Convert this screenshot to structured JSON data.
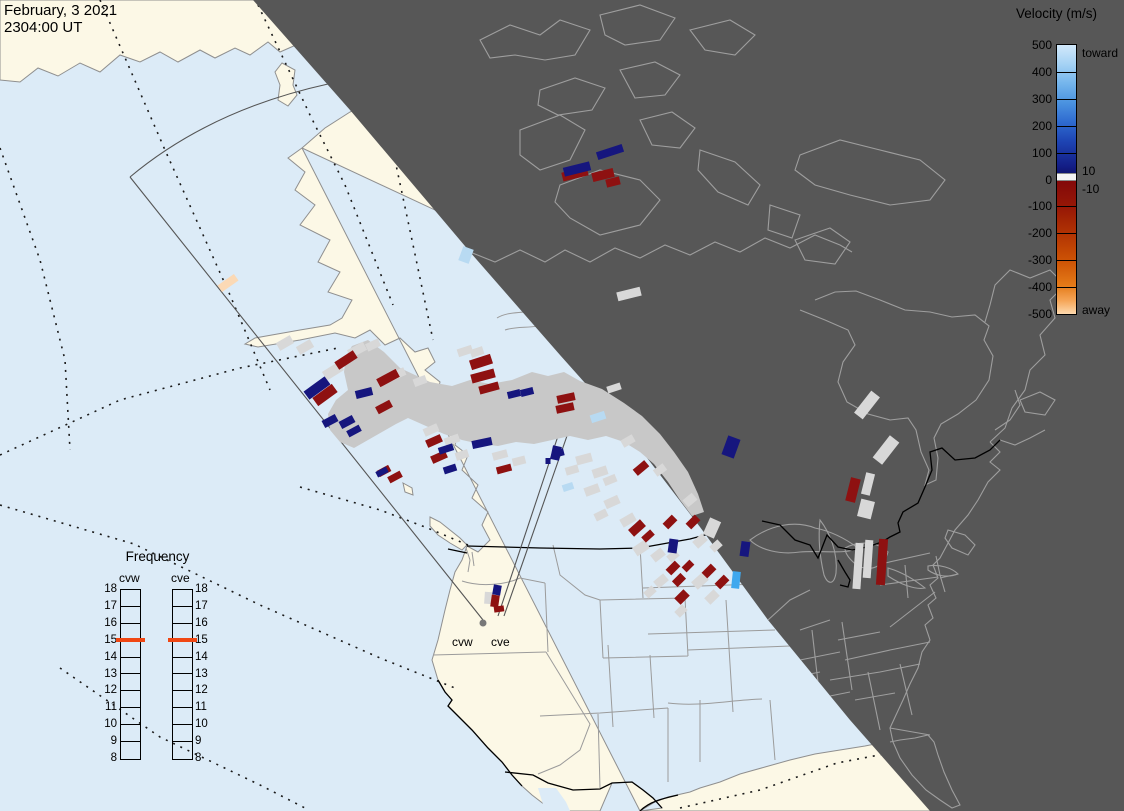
{
  "header": {
    "date_line1": "February, 3 2021",
    "date_line2": "2304:00 UT"
  },
  "velocity_legend": {
    "title": "Velocity (m/s)",
    "ticks": [
      "500",
      "400",
      "300",
      "200",
      "100",
      "0",
      "-100",
      "-200",
      "-300",
      "-400",
      "-500"
    ],
    "toward_label": "toward",
    "away_label": "away",
    "pos_threshold": "10",
    "neg_threshold": "-10"
  },
  "frequency_legend": {
    "title": "Frequency",
    "radars": [
      "cvw",
      "cve"
    ],
    "ticks": [
      "18",
      "17",
      "16",
      "15",
      "14",
      "13",
      "12",
      "11",
      "10",
      "9",
      "8"
    ],
    "active_value": "15"
  },
  "map": {
    "site_labels": [
      "cvw",
      "cve"
    ],
    "colors": {
      "ocean": "#dcebf7",
      "land": "#fcf8e6",
      "night": "#575757",
      "night_line": "#9e9e9e",
      "ground_scatter": "#c8c8c8",
      "scatter_cell": "#d8d8d8",
      "velocity_away_red": "#8e1111",
      "velocity_toward_blue": "#16167e",
      "toward_fast_cyan": "#3fa8ee",
      "pale_blue": "#b8daf2",
      "pale_orange": "#fbd9b5",
      "freq_marker_orange": "#f04713"
    },
    "band_polygon": "352,346 368,340 384,352 400,368 430,382 452,386 470,380 490,384 512,380 532,372 548,376 564,372 580,381 602,389 624,403 642,416 660,434 674,452 688,472 698,494 704,512 692,516 680,500 668,482 654,464 640,452 624,442 606,436 588,440 570,436 552,440 534,444 516,442 498,446 480,444 462,440 444,434 426,426 408,418 396,424 382,432 368,440 354,448 340,442 330,430 328,414 336,400 348,390 344,372 346,356",
    "cells": {
      "gs": [
        [
          285,
          343,
          16,
          9,
          -30
        ],
        [
          305,
          347,
          16,
          9,
          -30
        ],
        [
          357,
          350,
          18,
          9,
          -28
        ],
        [
          373,
          345,
          14,
          8,
          -25
        ],
        [
          333,
          371,
          20,
          10,
          -32
        ],
        [
          398,
          374,
          15,
          8,
          -24
        ],
        [
          420,
          381,
          13,
          8,
          -20
        ],
        [
          465,
          351,
          15,
          8,
          -18
        ],
        [
          477,
          352,
          13,
          8,
          -18
        ],
        [
          431,
          430,
          15,
          8,
          -24
        ],
        [
          452,
          440,
          15,
          8,
          -20
        ],
        [
          462,
          455,
          13,
          8,
          -18
        ],
        [
          500,
          455,
          15,
          8,
          -15
        ],
        [
          519,
          461,
          13,
          8,
          -14
        ],
        [
          584,
          459,
          16,
          9,
          -15
        ],
        [
          600,
          472,
          15,
          9,
          -18
        ],
        [
          592,
          490,
          15,
          9,
          -20
        ],
        [
          612,
          502,
          15,
          9,
          -24
        ],
        [
          601,
          515,
          13,
          8,
          -26
        ],
        [
          628,
          520,
          15,
          9,
          -30
        ],
        [
          641,
          548,
          15,
          10,
          -34
        ],
        [
          658,
          555,
          13,
          9,
          -38
        ],
        [
          673,
          556,
          11,
          8,
          -40
        ],
        [
          700,
          541,
          13,
          9,
          -42
        ],
        [
          716,
          546,
          11,
          8,
          -42
        ],
        [
          661,
          581,
          13,
          9,
          -40
        ],
        [
          700,
          581,
          15,
          10,
          -42
        ],
        [
          712,
          597,
          13,
          9,
          -44
        ],
        [
          681,
          611,
          11,
          8,
          -44
        ],
        [
          650,
          592,
          11,
          8,
          -42
        ],
        [
          629,
          294,
          24,
          9,
          -14
        ],
        [
          614,
          388,
          14,
          7,
          -18
        ],
        [
          712,
          528,
          12,
          18,
          24
        ],
        [
          867,
          405,
          11,
          28,
          38
        ],
        [
          886,
          450,
          12,
          28,
          38
        ],
        [
          868,
          484,
          9,
          22,
          14
        ],
        [
          866,
          509,
          14,
          18,
          14
        ],
        [
          858,
          566,
          8,
          46,
          4
        ],
        [
          868,
          559,
          8,
          38,
          4
        ],
        [
          489,
          598,
          9,
          12,
          4
        ],
        [
          628,
          441,
          13,
          8,
          -30
        ],
        [
          660,
          470,
          12,
          8,
          -36
        ],
        [
          690,
          500,
          12,
          9,
          -40
        ],
        [
          610,
          480,
          13,
          8,
          -22
        ],
        [
          572,
          470,
          13,
          8,
          -16
        ]
      ],
      "red": [
        [
          346,
          360,
          22,
          9,
          -33
        ],
        [
          388,
          378,
          22,
          9,
          -28
        ],
        [
          325,
          395,
          24,
          10,
          -36
        ],
        [
          481,
          362,
          22,
          10,
          -18
        ],
        [
          483,
          376,
          24,
          9,
          -15
        ],
        [
          489,
          388,
          20,
          8,
          -15
        ],
        [
          384,
          407,
          16,
          8,
          -28
        ],
        [
          566,
          398,
          18,
          8,
          -12
        ],
        [
          565,
          408,
          18,
          8,
          -12
        ],
        [
          434,
          441,
          16,
          8,
          -24
        ],
        [
          439,
          457,
          16,
          8,
          -24
        ],
        [
          504,
          469,
          15,
          7,
          -15
        ],
        [
          384,
          471,
          13,
          7,
          -28
        ],
        [
          395,
          477,
          14,
          7,
          -28
        ],
        [
          641,
          468,
          15,
          8,
          -40
        ],
        [
          637,
          528,
          16,
          9,
          -42
        ],
        [
          648,
          536,
          12,
          7,
          -42
        ],
        [
          670,
          522,
          13,
          8,
          -45
        ],
        [
          693,
          522,
          13,
          8,
          -45
        ],
        [
          673,
          568,
          13,
          8,
          -45
        ],
        [
          679,
          580,
          12,
          8,
          -45
        ],
        [
          688,
          566,
          11,
          7,
          -45
        ],
        [
          709,
          571,
          13,
          8,
          -45
        ],
        [
          722,
          582,
          13,
          8,
          -45
        ],
        [
          682,
          597,
          13,
          9,
          -45
        ],
        [
          853,
          490,
          10,
          24,
          14
        ],
        [
          882,
          562,
          9,
          46,
          4
        ],
        [
          575,
          174,
          26,
          9,
          -14
        ],
        [
          603,
          175,
          22,
          9,
          -14
        ],
        [
          613,
          182,
          14,
          8,
          -14
        ],
        [
          495,
          601,
          8,
          12,
          8
        ],
        [
          499,
          609,
          10,
          6,
          -8
        ]
      ],
      "blue": [
        [
          317,
          388,
          26,
          10,
          -36
        ],
        [
          364,
          393,
          17,
          8,
          -14
        ],
        [
          330,
          421,
          15,
          8,
          -28
        ],
        [
          347,
          422,
          15,
          8,
          -28
        ],
        [
          354,
          431,
          14,
          7,
          -28
        ],
        [
          514,
          394,
          13,
          7,
          -14
        ],
        [
          527,
          392,
          13,
          7,
          -14
        ],
        [
          446,
          449,
          15,
          7,
          -18
        ],
        [
          482,
          443,
          20,
          8,
          -12
        ],
        [
          450,
          469,
          13,
          7,
          -18
        ],
        [
          559,
          453,
          10,
          7,
          -14
        ],
        [
          556,
          453,
          9,
          14,
          12
        ],
        [
          382,
          472,
          12,
          6,
          -28
        ],
        [
          673,
          546,
          9,
          14,
          8
        ],
        [
          745,
          549,
          9,
          15,
          8
        ],
        [
          731,
          447,
          13,
          20,
          20
        ],
        [
          610,
          152,
          27,
          8,
          -18
        ],
        [
          577,
          169,
          27,
          9,
          -14
        ],
        [
          497,
          590,
          8,
          10,
          10
        ],
        [
          548,
          461,
          5,
          6,
          0
        ]
      ],
      "cyan": [
        [
          736,
          580,
          8,
          17,
          6
        ]
      ],
      "pale": [
        [
          466,
          255,
          11,
          15,
          20
        ],
        [
          598,
          417,
          15,
          8,
          -18
        ],
        [
          568,
          487,
          11,
          7,
          -18
        ]
      ],
      "peach": [
        [
          228,
          283,
          20,
          8,
          -35
        ]
      ]
    }
  }
}
